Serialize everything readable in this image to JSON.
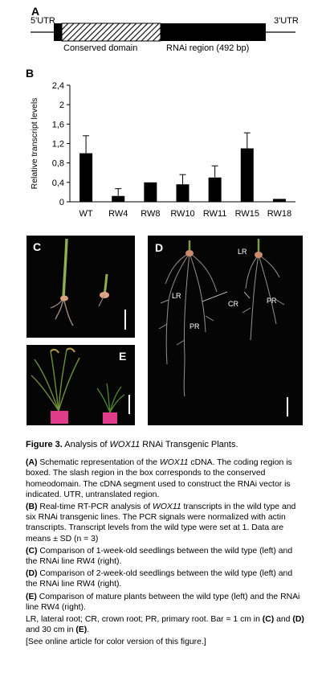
{
  "panel_a": {
    "letter": "A",
    "utr5": "5'UTR",
    "utr3": "3'UTR",
    "conserved_label": "Conserved domain",
    "rnai_label": "RNAi region (492 bp)"
  },
  "panel_b": {
    "letter": "B"
  },
  "chart_data": {
    "type": "bar",
    "categories": [
      "WT",
      "RW4",
      "RW8",
      "RW10",
      "RW11",
      "RW15",
      "RW18"
    ],
    "values": [
      1.0,
      0.12,
      0.4,
      0.36,
      0.5,
      1.1,
      0.06
    ],
    "errors": [
      0.36,
      0.15,
      0,
      0.2,
      0.24,
      0.32,
      0
    ],
    "ylabel": "Relative transcript levels",
    "ylim": [
      0,
      2.4
    ],
    "yticks": [
      "0",
      "0,4",
      "0,8",
      "1,2",
      "1,6",
      "2",
      "2,4"
    ],
    "ytick_values": [
      0,
      0.4,
      0.8,
      1.2,
      1.6,
      2.0,
      2.4
    ],
    "bar_color": "#000000",
    "grid": false
  },
  "photos": {
    "c": {
      "letter": "C"
    },
    "d": {
      "letter": "D",
      "lr1": "LR",
      "lr2": "LR",
      "cr": "CR",
      "pr1": "PR",
      "pr2": "PR"
    },
    "e": {
      "letter": "E"
    }
  },
  "caption": {
    "title_prefix": "Figure 3.",
    "title_a": "Analysis of ",
    "gene": "WOX11",
    "title_b": " RNAi Transgenic Plants.",
    "a_tag": "(A)",
    "a_1": " Schematic representation of the ",
    "a_2": " cDNA. The coding region is boxed. The slash region in the box corresponds to the conserved homeodomain. The cDNA segment used to construct the RNAi vector is indicated. UTR, untranslated region.",
    "b_tag": "(B)",
    "b_1": " Real-time RT-PCR analysis of ",
    "b_2": " transcripts in the wild type and six RNAi transgenic lines. The PCR signals were normalized with actin transcripts. Transcript levels from the wild type were set at 1. Data are means ± SD (n = 3)",
    "c_tag": "(C)",
    "c_text": " Comparison of 1-week-old seedlings between the wild type (left) and the RNAi line RW4 (right).",
    "d_tag": "(D)",
    "d_text": " Comparison of 2-week-old seedlings between the wild type (left) and the RNAi line RW4 (right).",
    "e_tag": "(E)",
    "e_text": " Comparison of mature plants between the wild type (left) and the RNAi line RW4 (right).",
    "abbr_1": "LR, lateral root; CR, crown root; PR, primary root. Bar = 1 cm in ",
    "abbr_c": "(C)",
    "abbr_2": " and ",
    "abbr_d": "(D)",
    "abbr_3": " and 30 cm in ",
    "abbr_e": "(E)",
    "abbr_4": ".",
    "online": "[See online article for color version of this figure.]"
  }
}
